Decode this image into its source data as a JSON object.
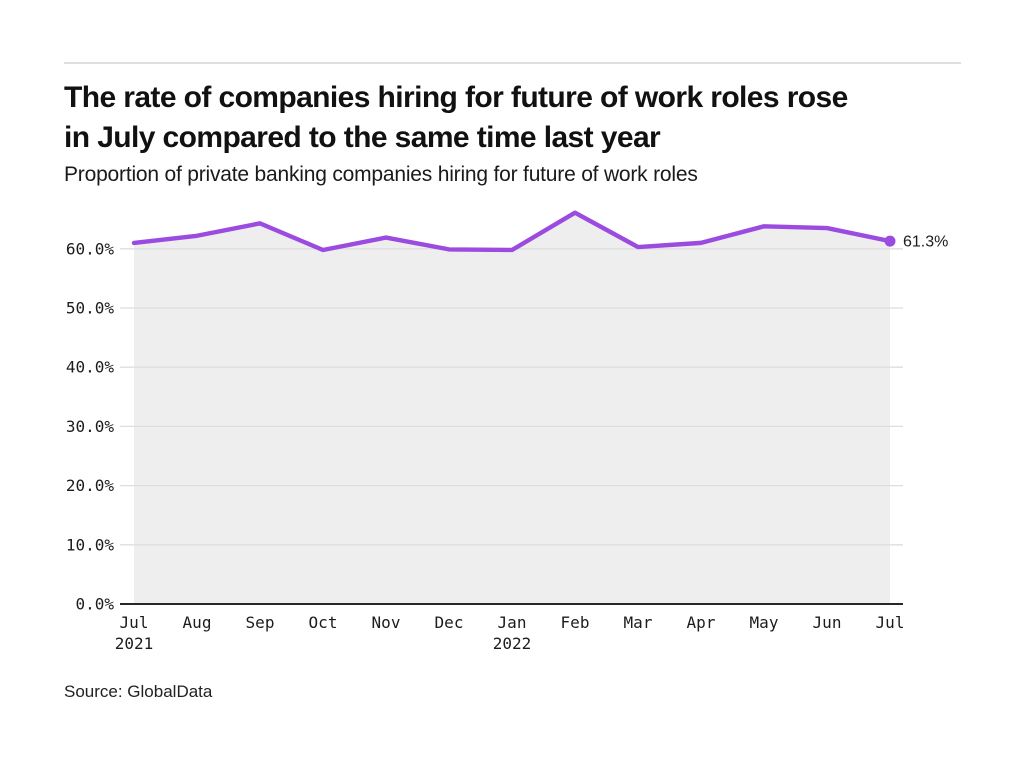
{
  "header": {
    "title_lines": [
      "The rate of companies hiring for future of work roles rose",
      "in July compared to the same time last year"
    ],
    "subtitle": "Proportion of private banking companies hiring for future of work roles"
  },
  "source_note": "Source: GlobalData",
  "colors": {
    "line": "#9b4be0",
    "area_fill": "#eeeeee",
    "grid": "#dedede",
    "axis": "#24272c",
    "tick_text": "#1c1c1c",
    "end_label_text": "#1c1c1c"
  },
  "chart_data": {
    "type": "line",
    "title": "Proportion of private banking companies hiring for future of work roles",
    "categories": [
      "Jul 2021",
      "Aug 2021",
      "Sep 2021",
      "Oct 2021",
      "Nov 2021",
      "Dec 2021",
      "Jan 2022",
      "Feb 2022",
      "Mar 2022",
      "Apr 2022",
      "May 2022",
      "Jun 2022",
      "Jul 2022"
    ],
    "values": [
      61.0,
      62.2,
      64.3,
      59.8,
      61.9,
      59.9,
      59.8,
      66.1,
      60.3,
      61.0,
      63.8,
      63.5,
      61.3
    ],
    "x_tick_labels": [
      {
        "month": "Jul",
        "year": "2021"
      },
      {
        "month": "Aug",
        "year": ""
      },
      {
        "month": "Sep",
        "year": ""
      },
      {
        "month": "Oct",
        "year": ""
      },
      {
        "month": "Nov",
        "year": ""
      },
      {
        "month": "Dec",
        "year": ""
      },
      {
        "month": "Jan",
        "year": "2022"
      },
      {
        "month": "Feb",
        "year": ""
      },
      {
        "month": "Mar",
        "year": ""
      },
      {
        "month": "Apr",
        "year": ""
      },
      {
        "month": "May",
        "year": ""
      },
      {
        "month": "Jun",
        "year": ""
      },
      {
        "month": "Jul",
        "year": ""
      }
    ],
    "y_ticks": [
      {
        "value": 0,
        "label": "0.0%"
      },
      {
        "value": 10,
        "label": "10.0%"
      },
      {
        "value": 20,
        "label": "20.0%"
      },
      {
        "value": 30,
        "label": "30.0%"
      },
      {
        "value": 40,
        "label": "40.0%"
      },
      {
        "value": 50,
        "label": "50.0%"
      },
      {
        "value": 60,
        "label": "60.0%"
      }
    ],
    "ylim": [
      0,
      70
    ],
    "end_label": "61.3%",
    "grid": "horizontal",
    "legend": "none"
  }
}
